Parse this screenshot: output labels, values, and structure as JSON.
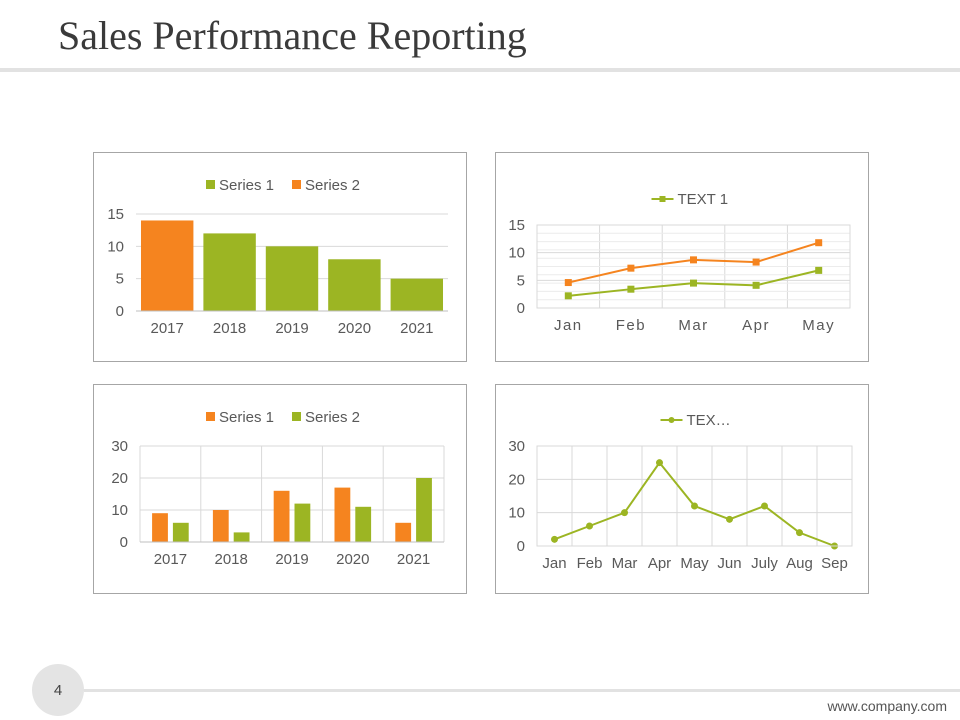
{
  "slide": {
    "title": "Sales Performance Reporting",
    "page_number": "4",
    "footer_url": "www.company.com"
  },
  "colors": {
    "green": "#9cb523",
    "orange": "#f5841f",
    "grid": "#d9d9d9",
    "text": "#595959"
  },
  "chart_data": [
    {
      "type": "bar",
      "categories": [
        "2017",
        "2018",
        "2019",
        "2020",
        "2021"
      ],
      "series": [
        {
          "name": "Series 1",
          "values": [
            null,
            12,
            10,
            8,
            5
          ],
          "color": "#9cb523"
        },
        {
          "name": "Series 2",
          "values": [
            14,
            null,
            null,
            null,
            null
          ],
          "color": "#f5841f"
        }
      ],
      "yticks": [
        "0",
        "5",
        "10",
        "15"
      ],
      "ylim": [
        0,
        15
      ],
      "grid": "horizontal",
      "legend": "top"
    },
    {
      "type": "line",
      "categories": [
        "Jan",
        "Feb",
        "Mar",
        "Apr",
        "May"
      ],
      "series": [
        {
          "name": "TEXT 1",
          "values": [
            2.2,
            3.4,
            4.5,
            4.1,
            6.8
          ],
          "color": "#9cb523",
          "marker": "square"
        },
        {
          "values": [
            4.6,
            7.2,
            8.7,
            8.3,
            11.8
          ],
          "color": "#f5841f",
          "marker": "square"
        }
      ],
      "yticks": [
        "0",
        "5",
        "10",
        "15"
      ],
      "ylim": [
        0,
        15
      ],
      "grid": "horizontal and vertical",
      "legend": "top"
    },
    {
      "type": "bar",
      "categories": [
        "2017",
        "2018",
        "2019",
        "2020",
        "2021"
      ],
      "series": [
        {
          "name": "Series 1",
          "values": [
            9,
            10,
            16,
            17,
            6
          ],
          "color": "#f5841f"
        },
        {
          "name": "Series 2",
          "values": [
            6,
            3,
            12,
            11,
            20
          ],
          "color": "#9cb523"
        }
      ],
      "yticks": [
        "0",
        "10",
        "20",
        "30"
      ],
      "ylim": [
        0,
        30
      ],
      "grid": "horizontal and vertical",
      "legend": "top"
    },
    {
      "type": "line",
      "categories": [
        "Jan",
        "Feb",
        "Mar",
        "Apr",
        "May",
        "Jun",
        "July",
        "Aug",
        "Sep"
      ],
      "series": [
        {
          "name": "TEX…",
          "values": [
            2,
            6,
            10,
            25,
            12,
            8,
            12,
            4,
            0
          ],
          "color": "#9cb523",
          "marker": "circle"
        }
      ],
      "yticks": [
        "0",
        "10",
        "20",
        "30"
      ],
      "ylim": [
        0,
        30
      ],
      "grid": "horizontal and vertical",
      "legend": "top"
    }
  ]
}
